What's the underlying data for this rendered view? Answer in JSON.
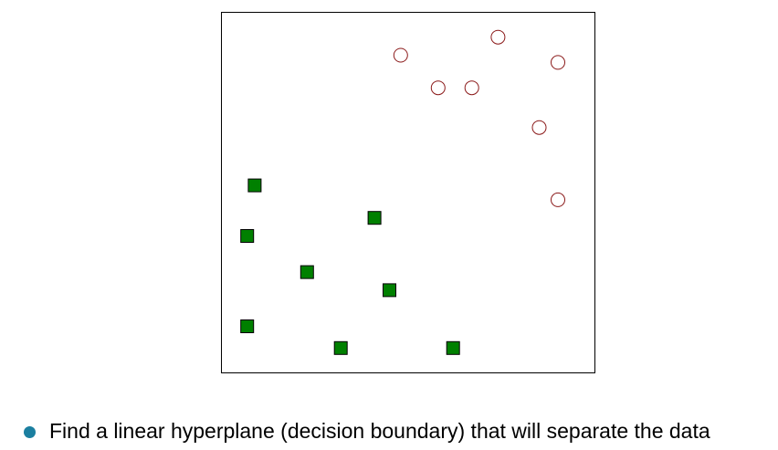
{
  "colors": {
    "square_fill": "#008000",
    "square_stroke": "#000000",
    "circle_stroke": "#8b1a1a",
    "bullet": "#1b7fa0",
    "frame": "#000000"
  },
  "chart_data": {
    "type": "scatter",
    "title": "",
    "xlabel": "",
    "ylabel": "",
    "xlim": [
      0,
      100
    ],
    "ylim": [
      0,
      100
    ],
    "grid": false,
    "legend": "none",
    "series": [
      {
        "marker": "square",
        "x": [
          9,
          7,
          7,
          23,
          32,
          41,
          45,
          62
        ],
        "y": [
          52,
          38,
          13,
          28,
          7,
          43,
          23,
          7
        ]
      },
      {
        "marker": "open-circle",
        "x": [
          48,
          74,
          67,
          58,
          90,
          85,
          90
        ],
        "y": [
          88,
          93,
          79,
          79,
          86,
          68,
          48
        ]
      }
    ]
  },
  "bullet": {
    "text": "Find a linear hyperplane (decision boundary) that will separate the data"
  }
}
